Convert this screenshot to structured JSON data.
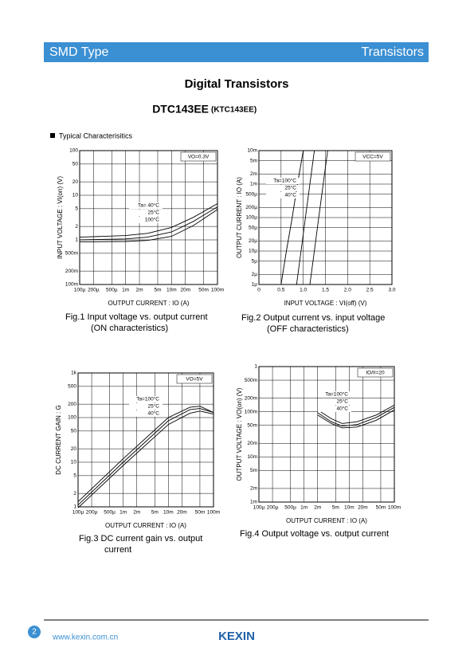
{
  "header": {
    "left": "SMD Type",
    "right": "Transistors"
  },
  "title": {
    "main": "Digital Transistors",
    "part": "DTC143EE",
    "alt": "(KTC143EE)"
  },
  "section": "Typical  Characterisitics",
  "figures": [
    {
      "xlabel": "OUTPUT  CURRENT : IO (A)",
      "ylabel": "INPUT  VOLTAGE : VI(on) (V)",
      "annotation": "VO=0.3V",
      "caption": [
        "Fig.1  Input voltage vs. output current",
        "(ON characteristics)"
      ],
      "xlog": true,
      "ylog": true,
      "xlim": [
        0.0001,
        0.1
      ],
      "ylim": [
        0.1,
        100
      ],
      "xticks": [
        {
          "value": 0.0001,
          "label": "100µ"
        },
        {
          "value": 0.0002,
          "label": "200µ"
        },
        {
          "value": 0.0005,
          "label": "500µ"
        },
        {
          "value": 0.001,
          "label": "1m"
        },
        {
          "value": 0.002,
          "label": "2m"
        },
        {
          "value": 0.005,
          "label": "5m"
        },
        {
          "value": 0.01,
          "label": "10m"
        },
        {
          "value": 0.02,
          "label": "20m"
        },
        {
          "value": 0.05,
          "label": "50m"
        },
        {
          "value": 0.1,
          "label": "100m"
        }
      ],
      "yticks": [
        {
          "value": 0.1,
          "label": "100m"
        },
        {
          "value": 0.2,
          "label": "200m"
        },
        {
          "value": 0.5,
          "label": "500m"
        },
        1,
        2,
        5,
        10,
        20,
        50,
        100
      ],
      "series": [
        {
          "name": "Ta=  40°C",
          "x": [
            0.0001,
            0.001,
            0.003,
            0.01,
            0.03,
            0.1
          ],
          "values": [
            1.15,
            1.25,
            1.4,
            1.9,
            3.2,
            6.5
          ]
        },
        {
          "name": "25°C",
          "x": [
            0.0001,
            0.001,
            0.003,
            0.01,
            0.03,
            0.1
          ],
          "values": [
            1.0,
            1.05,
            1.15,
            1.5,
            2.6,
            5.5
          ]
        },
        {
          "name": "100°C",
          "x": [
            0.0001,
            0.001,
            0.003,
            0.01,
            0.03,
            0.1
          ],
          "values": [
            0.9,
            0.92,
            0.97,
            1.2,
            2.1,
            4.8
          ]
        }
      ]
    },
    {
      "xlabel": "INPUT  VOLTAGE : VI(off) (V)",
      "ylabel": "OUTPUT  CURRENT : IO (A)",
      "annotation": "VCC=5V",
      "caption": [
        "Fig.2  Output current vs. input voltage",
        "(OFF characteristics)"
      ],
      "xlog": false,
      "ylog": true,
      "xlim": [
        0,
        3
      ],
      "ylim": [
        1e-06,
        0.01
      ],
      "xticks": [
        0,
        0.5,
        {
          "value": 1,
          "label": "1.0"
        },
        1.5,
        {
          "value": 2,
          "label": "2.0"
        },
        2.5,
        {
          "value": 3,
          "label": "3.0"
        }
      ],
      "yticks": [
        {
          "value": 1e-06,
          "label": "1µ"
        },
        {
          "value": 2e-06,
          "label": "2µ"
        },
        {
          "value": 5e-06,
          "label": "5µ"
        },
        {
          "value": 1e-05,
          "label": "10µ"
        },
        {
          "value": 2e-05,
          "label": "20µ"
        },
        {
          "value": 5e-05,
          "label": "50µ"
        },
        {
          "value": 0.0001,
          "label": "100µ"
        },
        {
          "value": 0.0002,
          "label": "200µ"
        },
        {
          "value": 0.0005,
          "label": "500µ"
        },
        {
          "value": 0.001,
          "label": "1m"
        },
        {
          "value": 0.002,
          "label": "2m"
        },
        {
          "value": 0.005,
          "label": "5m"
        },
        {
          "value": 0.01,
          "label": "10m"
        }
      ],
      "series": [
        {
          "name": "Ta=100°C",
          "x": [
            0.5,
            0.62,
            0.75,
            0.87,
            1.0
          ],
          "values": [
            1e-06,
            1e-05,
            0.0001,
            0.001,
            0.01
          ]
        },
        {
          "name": "25°C",
          "x": [
            0.85,
            0.95,
            1.05,
            1.15,
            1.25
          ],
          "values": [
            1e-06,
            1e-05,
            0.0001,
            0.001,
            0.01
          ]
        },
        {
          "name": "40°C",
          "x": [
            1.15,
            1.25,
            1.35,
            1.45,
            1.55
          ],
          "values": [
            1e-06,
            1e-05,
            0.0001,
            0.001,
            0.01
          ]
        }
      ]
    },
    {
      "xlabel": "OUTPUT  CURRENT : IO (A)",
      "ylabel": "DC  CURRENT  GAIN : G",
      "annotation": "VO=5V",
      "caption": [
        "Fig.3  DC current gain vs. output",
        "current"
      ],
      "xlog": true,
      "ylog": true,
      "xlim": [
        0.0001,
        0.1
      ],
      "ylim": [
        1,
        1000
      ],
      "xticks": [
        {
          "value": 0.0001,
          "label": "100µ"
        },
        {
          "value": 0.0002,
          "label": "200µ"
        },
        {
          "value": 0.0005,
          "label": "500µ"
        },
        {
          "value": 0.001,
          "label": "1m"
        },
        {
          "value": 0.002,
          "label": "2m"
        },
        {
          "value": 0.005,
          "label": "5m"
        },
        {
          "value": 0.01,
          "label": "10m"
        },
        {
          "value": 0.02,
          "label": "20m"
        },
        {
          "value": 0.05,
          "label": "50m"
        },
        {
          "value": 0.1,
          "label": "100m"
        }
      ],
      "yticks": [
        1,
        2,
        5,
        10,
        20,
        50,
        100,
        200,
        500,
        {
          "value": 1000,
          "label": "1k"
        }
      ],
      "series": [
        {
          "name": "Ta=100°C",
          "x": [
            0.0001,
            0.001,
            0.01,
            0.03,
            0.05,
            0.1
          ],
          "values": [
            1.3,
            12,
            100,
            170,
            180,
            130
          ]
        },
        {
          "name": "25°C",
          "x": [
            0.0001,
            0.001,
            0.01,
            0.03,
            0.05,
            0.1
          ],
          "values": [
            1.1,
            10,
            85,
            150,
            160,
            130
          ]
        },
        {
          "name": "40°C",
          "x": [
            0.0001,
            0.001,
            0.01,
            0.03,
            0.05,
            0.1
          ],
          "values": [
            0.95,
            8.5,
            70,
            125,
            140,
            120
          ]
        }
      ]
    },
    {
      "xlabel": "OUTPUT  CURRENT : IO (A)",
      "ylabel": "OUTPUT  VOLTAGE : VO(on) (V)",
      "annotation": "IO/II=20",
      "caption": [
        "Fig.4  Output voltage vs. output current"
      ],
      "xlog": true,
      "ylog": true,
      "xlim": [
        0.0001,
        0.1
      ],
      "ylim": [
        0.001,
        1
      ],
      "xticks": [
        {
          "value": 0.0001,
          "label": "100µ"
        },
        {
          "value": 0.0002,
          "label": "200µ"
        },
        {
          "value": 0.0005,
          "label": "500µ"
        },
        {
          "value": 0.001,
          "label": "1m"
        },
        {
          "value": 0.002,
          "label": "2m"
        },
        {
          "value": 0.005,
          "label": "5m"
        },
        {
          "value": 0.01,
          "label": "10m"
        },
        {
          "value": 0.02,
          "label": "20m"
        },
        {
          "value": 0.05,
          "label": "50m"
        },
        {
          "value": 0.1,
          "label": "100m"
        }
      ],
      "yticks": [
        {
          "value": 0.001,
          "label": "1m"
        },
        {
          "value": 0.002,
          "label": "2m"
        },
        {
          "value": 0.005,
          "label": "5m"
        },
        {
          "value": 0.01,
          "label": "10m"
        },
        {
          "value": 0.02,
          "label": "20m"
        },
        {
          "value": 0.05,
          "label": "50m"
        },
        {
          "value": 0.1,
          "label": "100m"
        },
        {
          "value": 0.2,
          "label": "200m"
        },
        {
          "value": 0.5,
          "label": "500m"
        },
        1
      ],
      "series": [
        {
          "name": "Ta=100°C",
          "x": [
            0.002,
            0.004,
            0.007,
            0.015,
            0.04,
            0.1
          ],
          "values": [
            0.11,
            0.07,
            0.055,
            0.06,
            0.085,
            0.14
          ]
        },
        {
          "name": "25°C",
          "x": [
            0.002,
            0.004,
            0.007,
            0.015,
            0.04,
            0.1
          ],
          "values": [
            0.095,
            0.06,
            0.048,
            0.052,
            0.075,
            0.125
          ]
        },
        {
          "name": "40°C",
          "x": [
            0.002,
            0.004,
            0.007,
            0.015,
            0.04,
            0.1
          ],
          "values": [
            0.085,
            0.055,
            0.044,
            0.046,
            0.065,
            0.11
          ]
        }
      ]
    }
  ],
  "footer": {
    "page": "2",
    "url": "www.kexin.com.cn",
    "logo": "KEXIN"
  }
}
